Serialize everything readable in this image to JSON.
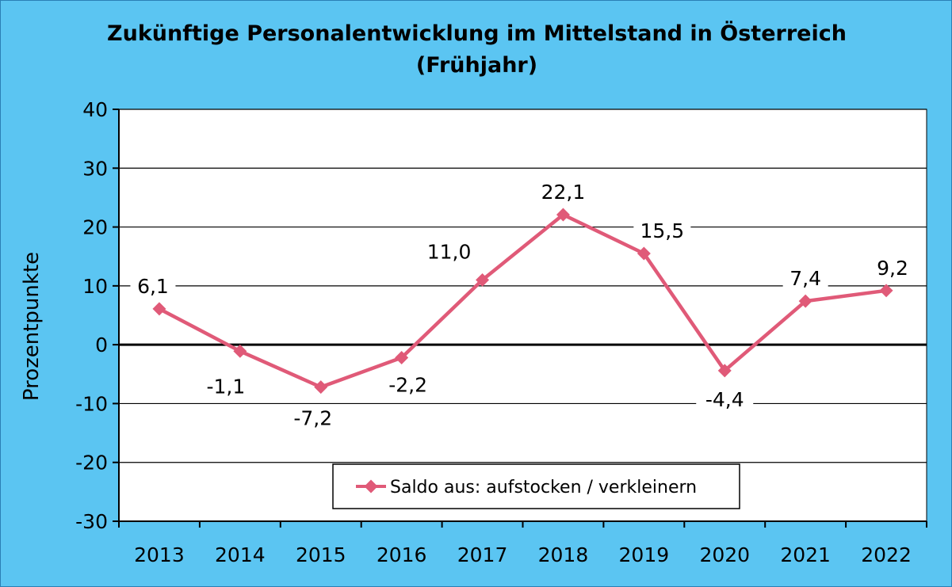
{
  "chart_data": {
    "type": "line",
    "title": "Zukünftige Personalentwicklung im Mittelstand in Österreich",
    "subtitle": "(Frühjahr)",
    "xlabel": "",
    "ylabel": "Prozentpunkte",
    "categories": [
      "2013",
      "2014",
      "2015",
      "2016",
      "2017",
      "2018",
      "2019",
      "2020",
      "2021",
      "2022"
    ],
    "series": [
      {
        "name": "Saldo aus: aufstocken / verkleinern",
        "values": [
          6.1,
          -1.1,
          -7.2,
          -2.2,
          11.0,
          22.1,
          15.5,
          -4.4,
          7.4,
          9.2
        ],
        "data_labels": [
          "6,1",
          "-1,1",
          "-7,2",
          "-2,2",
          "11,0",
          "22,1",
          "15,5",
          "-4,4",
          "7,4",
          "9,2"
        ]
      }
    ],
    "ylim": [
      -30,
      40
    ],
    "yticks": [
      40,
      30,
      20,
      10,
      0,
      -10,
      -20,
      -30
    ],
    "grid": "horizontal",
    "legend_position": "bottom-center",
    "colors": {
      "background": "#5bc5f2",
      "plot_background": "#ffffff",
      "series": "#e05a78",
      "zero_line": "#000000"
    }
  }
}
